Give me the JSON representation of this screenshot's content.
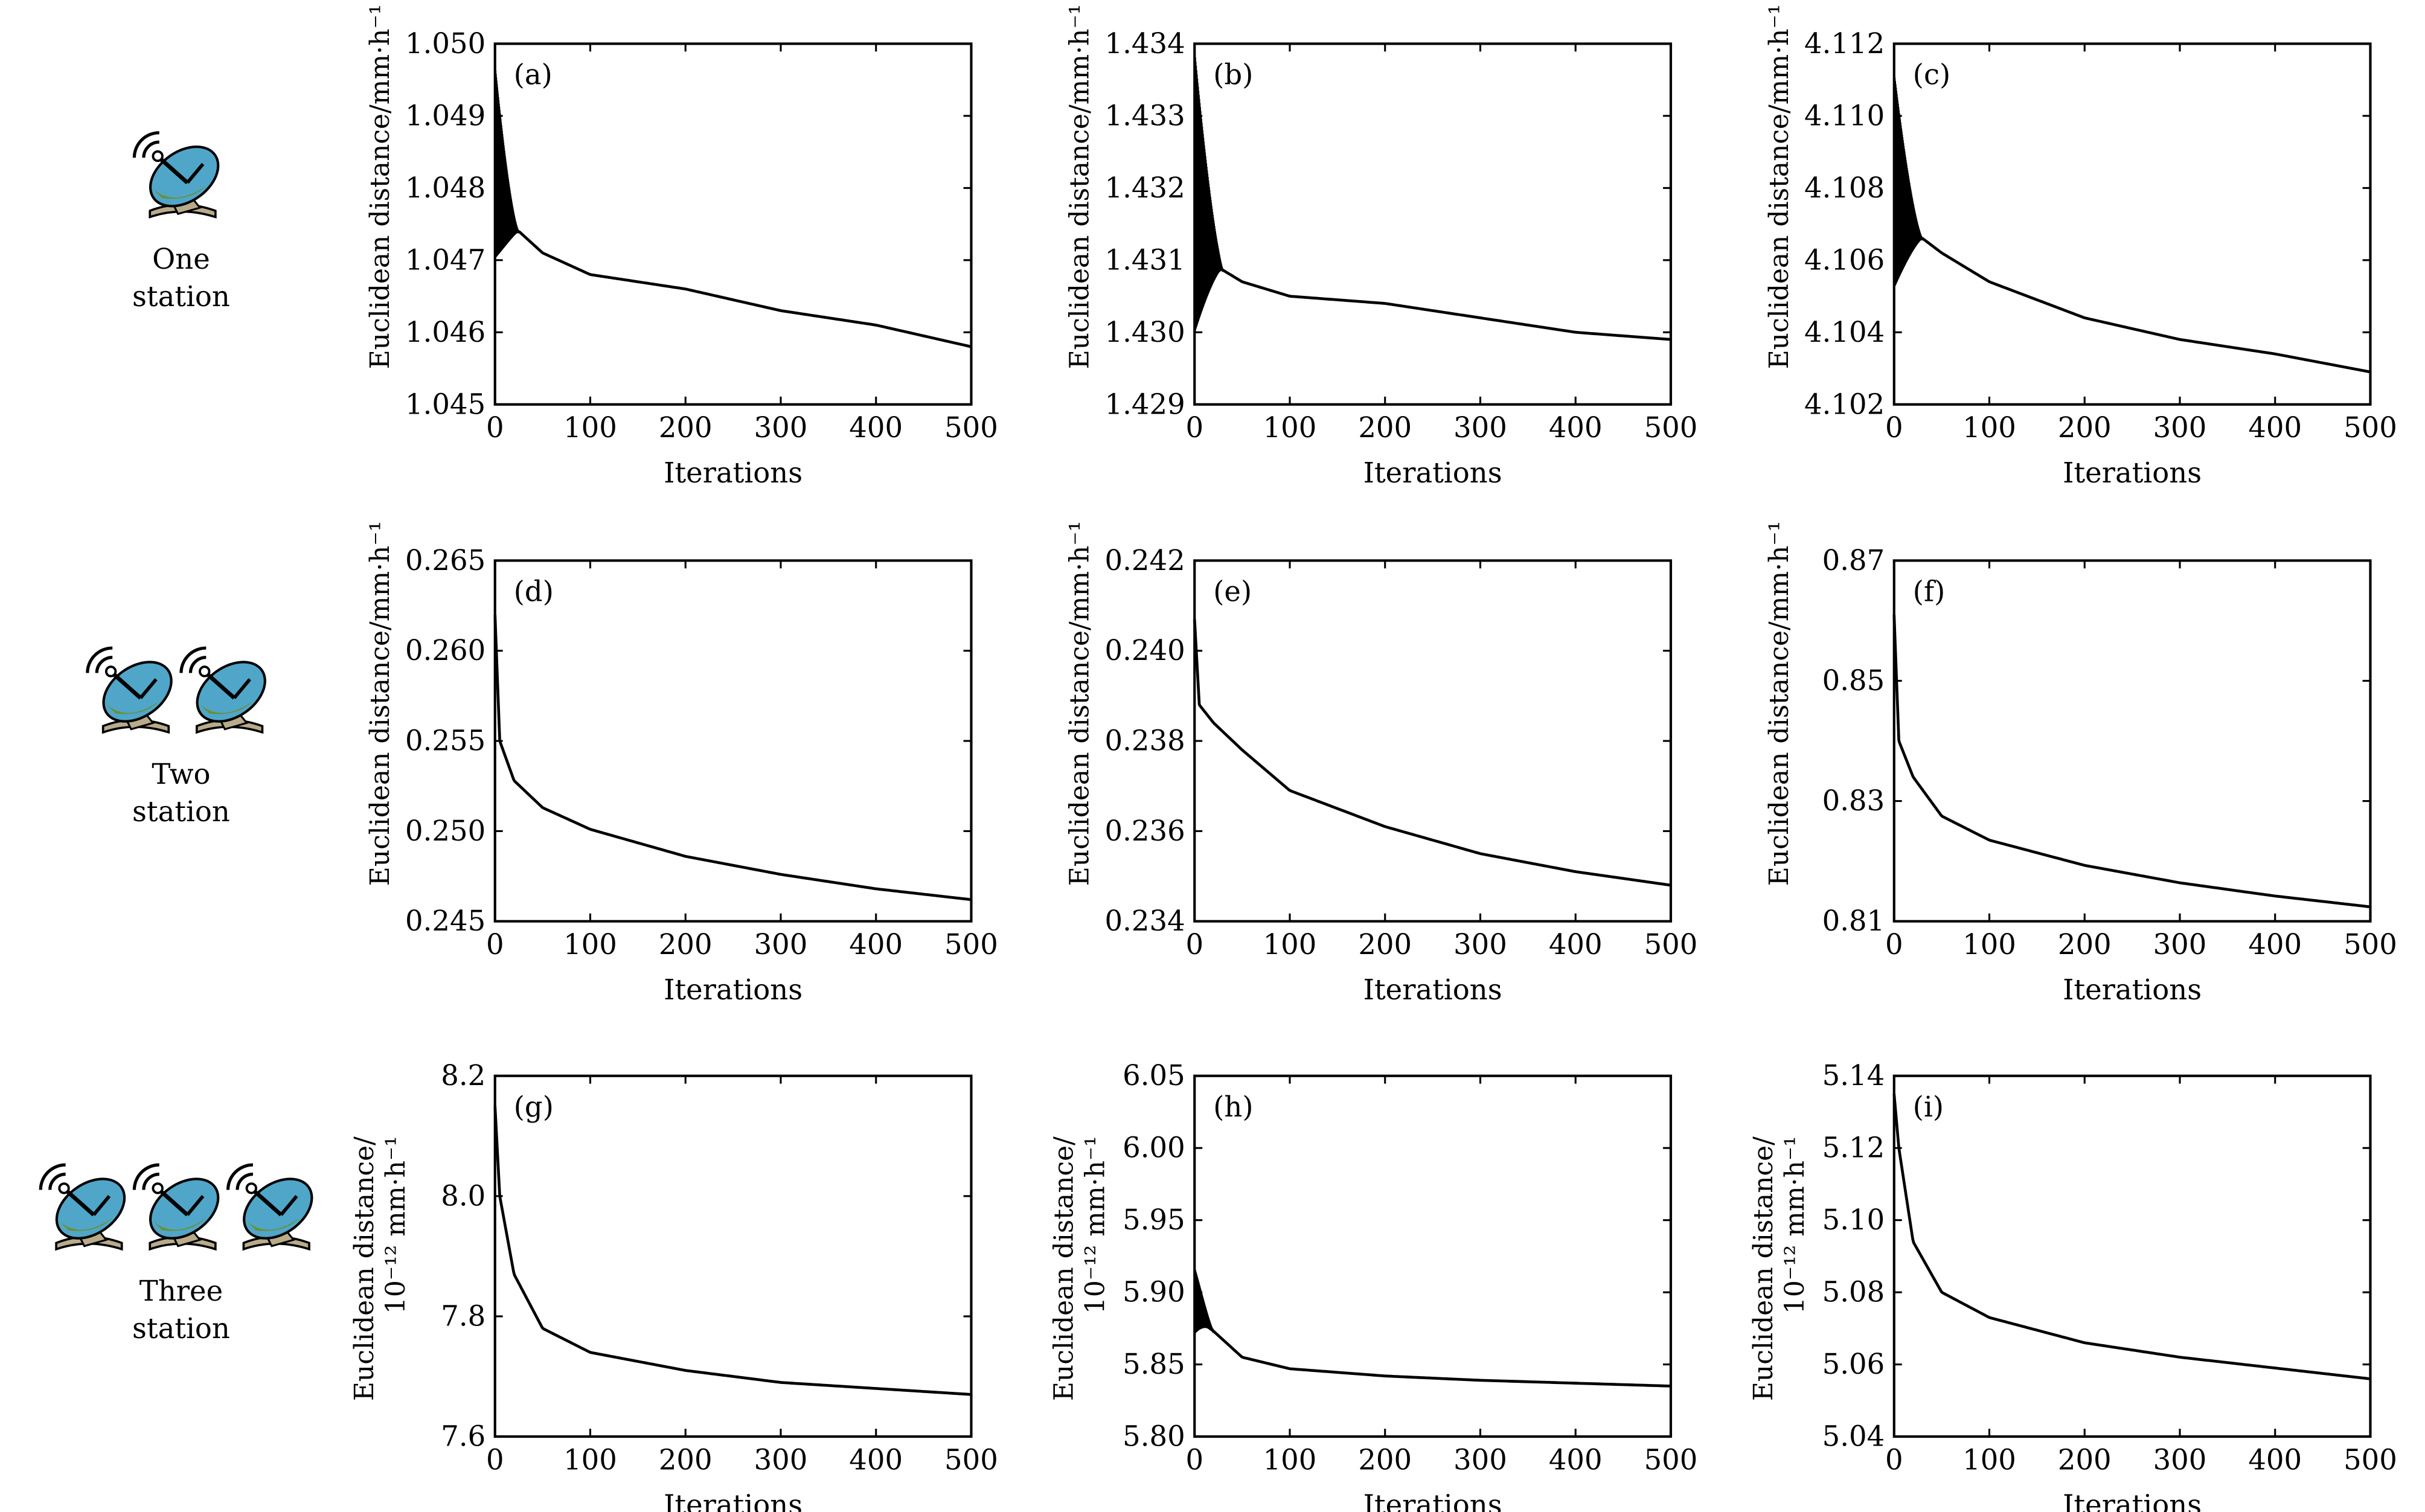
{
  "rows": [
    {
      "label_line1": "One",
      "label_line2": "station",
      "station_count": 1
    },
    {
      "label_line1": "Two",
      "label_line2": "station",
      "station_count": 2
    },
    {
      "label_line1": "Three",
      "label_line2": "station",
      "station_count": 3
    }
  ],
  "icon": {
    "name": "satellite-dish-icon",
    "colors": {
      "dish": "#4fa6c8",
      "ground": "#6b8f3a",
      "base": "#b9ab8a",
      "outline": "#000000"
    }
  },
  "colors": {
    "line": "#000000",
    "axis": "#000000",
    "background": "#ffffff"
  },
  "chart_data": [
    {
      "panel": "(a)",
      "type": "line",
      "xlabel": "Iterations",
      "ylabel": "Euclidean distance/mm·h⁻¹",
      "xlim": [
        0,
        500
      ],
      "ylim": [
        1.045,
        1.05
      ],
      "xticks": [
        "0",
        "100",
        "200",
        "300",
        "400",
        "500"
      ],
      "yticks": [
        "1.045",
        "1.046",
        "1.047",
        "1.048",
        "1.049",
        "1.050"
      ],
      "x": [
        0,
        25,
        50,
        100,
        200,
        300,
        400,
        500
      ],
      "y": [
        1.0473,
        1.0474,
        1.0471,
        1.0468,
        1.0466,
        1.0463,
        1.0461,
        1.0458
      ],
      "oscillation": {
        "x_end": 25,
        "y_low": 1.047,
        "y_high": 1.0497
      }
    },
    {
      "panel": "(b)",
      "type": "line",
      "xlabel": "Iterations",
      "ylabel": "Euclidean distance/mm·h⁻¹",
      "xlim": [
        0,
        500
      ],
      "ylim": [
        1.429,
        1.434
      ],
      "xticks": [
        "0",
        "100",
        "200",
        "300",
        "400",
        "500"
      ],
      "yticks": [
        "1.429",
        "1.430",
        "1.431",
        "1.432",
        "1.433",
        "1.434"
      ],
      "x": [
        0,
        25,
        50,
        100,
        200,
        300,
        400,
        500
      ],
      "y": [
        1.4309,
        1.4309,
        1.4307,
        1.4305,
        1.4304,
        1.4302,
        1.43,
        1.4299
      ],
      "oscillation": {
        "x_end": 30,
        "y_low": 1.4299,
        "y_high": 1.4339
      }
    },
    {
      "panel": "(c)",
      "type": "line",
      "xlabel": "Iterations",
      "ylabel": "Euclidean distance/mm·h⁻¹",
      "xlim": [
        0,
        500
      ],
      "ylim": [
        4.102,
        4.112
      ],
      "xticks": [
        "0",
        "100",
        "200",
        "300",
        "400",
        "500"
      ],
      "yticks": [
        "4.102",
        "4.104",
        "4.106",
        "4.108",
        "4.110",
        "4.112"
      ],
      "x": [
        0,
        30,
        50,
        100,
        200,
        300,
        400,
        500
      ],
      "y": [
        4.1065,
        4.1066,
        4.1062,
        4.1054,
        4.1044,
        4.1038,
        4.1034,
        4.1029
      ],
      "oscillation": {
        "x_end": 30,
        "y_low": 4.1051,
        "y_high": 4.1112
      }
    },
    {
      "panel": "(d)",
      "type": "line",
      "xlabel": "Iterations",
      "ylabel": "Euclidean distance/mm·h⁻¹",
      "xlim": [
        0,
        500
      ],
      "ylim": [
        0.245,
        0.265
      ],
      "xticks": [
        "0",
        "100",
        "200",
        "300",
        "400",
        "500"
      ],
      "yticks": [
        "0.245",
        "0.250",
        "0.255",
        "0.260",
        "0.265"
      ],
      "x": [
        0,
        5,
        20,
        50,
        100,
        200,
        300,
        400,
        500
      ],
      "y": [
        0.262,
        0.255,
        0.2528,
        0.2513,
        0.2501,
        0.2486,
        0.2476,
        0.2468,
        0.2462
      ]
    },
    {
      "panel": "(e)",
      "type": "line",
      "xlabel": "Iterations",
      "ylabel": "Euclidean distance/mm·h⁻¹",
      "xlim": [
        0,
        500
      ],
      "ylim": [
        0.234,
        0.242
      ],
      "xticks": [
        "0",
        "100",
        "200",
        "300",
        "400",
        "500"
      ],
      "yticks": [
        "0.234",
        "0.236",
        "0.238",
        "0.240",
        "0.242"
      ],
      "x": [
        0,
        5,
        20,
        50,
        100,
        200,
        300,
        400,
        500
      ],
      "y": [
        0.2407,
        0.2388,
        0.2384,
        0.2378,
        0.2369,
        0.2361,
        0.2355,
        0.2351,
        0.2348
      ]
    },
    {
      "panel": "(f)",
      "type": "line",
      "xlabel": "Iterations",
      "ylabel": "Euclidean distance/mm·h⁻¹",
      "xlim": [
        0,
        500
      ],
      "ylim": [
        0.81,
        0.87
      ],
      "xticks": [
        "0",
        "100",
        "200",
        "300",
        "400",
        "500"
      ],
      "yticks": [
        "0.81",
        "0.83",
        "0.85",
        "0.87"
      ],
      "x": [
        0,
        5,
        20,
        50,
        100,
        200,
        300,
        400,
        500
      ],
      "y": [
        0.861,
        0.84,
        0.834,
        0.8275,
        0.8235,
        0.8193,
        0.8164,
        0.8142,
        0.8124
      ]
    },
    {
      "panel": "(g)",
      "type": "line",
      "xlabel": "Iterations",
      "ylabel": "Euclidean distance/",
      "ylabel2": "10⁻¹² mm·h⁻¹",
      "xlim": [
        0,
        500
      ],
      "ylim": [
        7.6,
        8.2
      ],
      "xticks": [
        "0",
        "100",
        "200",
        "300",
        "400",
        "500"
      ],
      "yticks": [
        "7.6",
        "7.8",
        "8.0",
        "8.2"
      ],
      "x": [
        0,
        5,
        20,
        50,
        100,
        200,
        300,
        400,
        500
      ],
      "y": [
        8.15,
        8.0,
        7.87,
        7.78,
        7.74,
        7.71,
        7.69,
        7.68,
        7.67
      ]
    },
    {
      "panel": "(h)",
      "type": "line",
      "xlabel": "Iterations",
      "ylabel": "Euclidean distance/",
      "ylabel2": "10⁻¹² mm·h⁻¹",
      "xlim": [
        0,
        500
      ],
      "ylim": [
        5.8,
        6.05
      ],
      "xticks": [
        "0",
        "100",
        "200",
        "300",
        "400",
        "500"
      ],
      "yticks": [
        "5.80",
        "5.85",
        "5.90",
        "5.95",
        "6.00",
        "6.05"
      ],
      "x": [
        0,
        20,
        50,
        100,
        200,
        300,
        400,
        500
      ],
      "y": [
        5.883,
        5.873,
        5.855,
        5.847,
        5.842,
        5.839,
        5.837,
        5.835
      ],
      "oscillation": {
        "x_end": 20,
        "y_low": 5.87,
        "y_high": 5.917
      }
    },
    {
      "panel": "(i)",
      "type": "line",
      "xlabel": "Iterations",
      "ylabel": "Euclidean distance/",
      "ylabel2": "10⁻¹² mm·h⁻¹",
      "xlim": [
        0,
        500
      ],
      "ylim": [
        5.04,
        5.14
      ],
      "xticks": [
        "0",
        "100",
        "200",
        "300",
        "400",
        "500"
      ],
      "yticks": [
        "5.04",
        "5.06",
        "5.08",
        "5.10",
        "5.12",
        "5.14"
      ],
      "x": [
        0,
        5,
        20,
        50,
        100,
        200,
        300,
        400,
        500
      ],
      "y": [
        5.135,
        5.12,
        5.094,
        5.08,
        5.073,
        5.066,
        5.062,
        5.059,
        5.056
      ]
    }
  ]
}
